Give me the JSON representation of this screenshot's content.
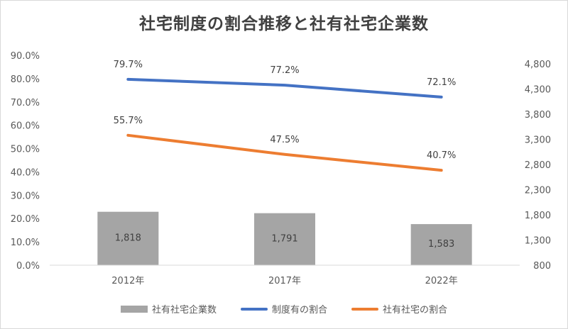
{
  "chart_data": {
    "type": "bar",
    "title": "社宅制度の割合推移と社有社宅企業数",
    "categories": [
      "2012年",
      "2017年",
      "2022年"
    ],
    "series": [
      {
        "name": "社有社宅企業数",
        "kind": "bar",
        "axis": "right",
        "values": [
          1818,
          1791,
          1583
        ],
        "labels": [
          "1,818",
          "1,791",
          "1,583"
        ],
        "color": "#a5a5a5"
      },
      {
        "name": "制度有の割合",
        "kind": "line",
        "axis": "left",
        "values": [
          79.7,
          77.2,
          72.1
        ],
        "labels": [
          "79.7%",
          "77.2%",
          "72.1%"
        ],
        "color": "#4472c4"
      },
      {
        "name": "社有社宅の割合",
        "kind": "line",
        "axis": "left",
        "values": [
          55.7,
          47.5,
          40.7
        ],
        "labels": [
          "55.7%",
          "47.5%",
          "40.7%"
        ],
        "color": "#ed7d31"
      }
    ],
    "y_left": {
      "ylim": [
        0,
        90
      ],
      "ticks": [
        "90.0%",
        "80.0%",
        "70.0%",
        "60.0%",
        "50.0%",
        "40.0%",
        "30.0%",
        "20.0%",
        "10.0%",
        "0.0%"
      ]
    },
    "y_right": {
      "ylim": [
        800,
        4800
      ],
      "ticks": [
        "4,800",
        "4,300",
        "3,800",
        "3,300",
        "2,800",
        "2,300",
        "1,800",
        "1,300",
        "800"
      ]
    },
    "grid": false,
    "legend": "bottom"
  }
}
